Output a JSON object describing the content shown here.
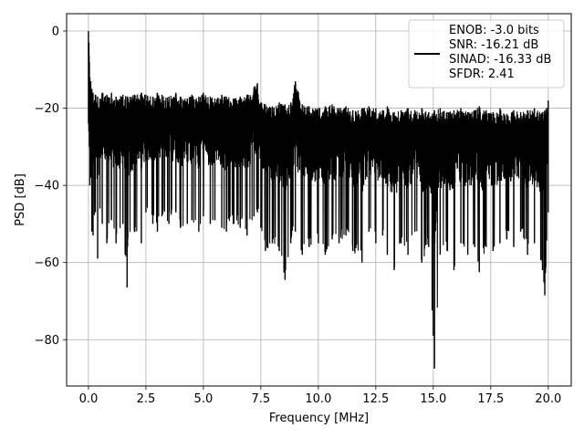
{
  "chart_data": {
    "type": "line",
    "title": "",
    "xlabel": "Frequency [MHz]",
    "ylabel": "PSD [dB]",
    "xlim": [
      -0.95,
      21.0
    ],
    "ylim": [
      -92.0,
      4.5
    ],
    "grid": true,
    "line_color": "#000000",
    "grid_color": "#b0b0b0",
    "xticks": [
      0.0,
      2.5,
      5.0,
      7.5,
      10.0,
      12.5,
      15.0,
      17.5,
      20.0
    ],
    "xtick_labels": [
      "0.0",
      "2.5",
      "5.0",
      "7.5",
      "10.0",
      "12.5",
      "15.0",
      "17.5",
      "20.0"
    ],
    "yticks": [
      0,
      -20,
      -40,
      -60,
      -80
    ],
    "ytick_labels": [
      "0",
      "−20",
      "−40",
      "−60",
      "−80"
    ],
    "legend": {
      "placement": "top-right",
      "lines": [
        "ENOB: -3.0 bits",
        "SNR: -16.21 dB",
        "SINAD: -16.33 dB",
        "SFDR: 2.41"
      ]
    },
    "series": [
      {
        "x": [
          0.0,
          0.02,
          0.04,
          0.06,
          0.1,
          0.15,
          0.2,
          0.3,
          0.4,
          0.5,
          0.6,
          0.8,
          1.0,
          1.2,
          1.5,
          1.68,
          1.7,
          2.0,
          2.3,
          2.5,
          2.8,
          3.0,
          3.2,
          3.5,
          3.8,
          4.0,
          4.3,
          4.5,
          4.8,
          5.0,
          5.3,
          5.5,
          5.8,
          6.0,
          6.3,
          6.6,
          6.9,
          7.2,
          7.35,
          7.5,
          7.7,
          8.0,
          8.3,
          8.55,
          8.8,
          9.0,
          9.3,
          9.6,
          10.0,
          10.3,
          10.6,
          10.9,
          11.2,
          11.5,
          11.9,
          12.2,
          12.5,
          12.8,
          13.0,
          13.3,
          13.6,
          13.9,
          14.2,
          14.5,
          14.8,
          15.05,
          15.3,
          15.6,
          15.9,
          16.2,
          16.5,
          16.8,
          17.0,
          17.3,
          17.6,
          17.9,
          18.2,
          18.5,
          18.8,
          19.1,
          19.4,
          19.75,
          19.85,
          20.0
        ],
        "y_upper": [
          0.0,
          -3.0,
          -8.0,
          -12.0,
          -13.0,
          -15.0,
          -16.0,
          -16.5,
          -17.0,
          -17.5,
          -16.0,
          -16.5,
          -16.0,
          -17.0,
          -16.5,
          -17.0,
          -17.0,
          -16.5,
          -16.0,
          -16.5,
          -17.0,
          -16.0,
          -16.5,
          -17.0,
          -16.0,
          -17.0,
          -17.5,
          -16.5,
          -17.0,
          -16.0,
          -17.0,
          -17.5,
          -16.5,
          -17.0,
          -17.5,
          -17.0,
          -16.5,
          -14.5,
          -13.5,
          -18.5,
          -19.0,
          -19.5,
          -18.5,
          -19.0,
          -18.5,
          -13.0,
          -19.0,
          -19.5,
          -20.0,
          -19.5,
          -19.0,
          -20.0,
          -19.5,
          -20.5,
          -20.0,
          -19.5,
          -20.0,
          -20.5,
          -19.5,
          -21.0,
          -20.5,
          -20.0,
          -20.5,
          -20.0,
          -21.0,
          -20.5,
          -20.0,
          -21.0,
          -20.5,
          -20.0,
          -21.0,
          -20.5,
          -19.5,
          -20.5,
          -21.0,
          -20.0,
          -21.5,
          -20.5,
          -21.0,
          -20.5,
          -20.0,
          -21.0,
          -20.5,
          -18.0
        ],
        "y_lower": [
          -24.0,
          -26.0,
          -30.0,
          -40.0,
          -38.0,
          -52.0,
          -53.0,
          -47.0,
          -59.0,
          -46.0,
          -50.0,
          -55.0,
          -49.0,
          -55.0,
          -50.0,
          -66.5,
          -56.0,
          -52.0,
          -55.0,
          -47.0,
          -50.0,
          -52.0,
          -48.0,
          -50.0,
          -47.0,
          -51.0,
          -50.0,
          -49.0,
          -52.0,
          -48.0,
          -50.0,
          -49.0,
          -51.0,
          -52.0,
          -50.0,
          -51.0,
          -53.0,
          -48.0,
          -47.0,
          -51.0,
          -57.0,
          -55.0,
          -57.0,
          -64.5,
          -55.0,
          -52.0,
          -58.0,
          -56.0,
          -55.0,
          -58.0,
          -54.0,
          -55.0,
          -53.0,
          -57.0,
          -60.0,
          -52.0,
          -55.0,
          -53.0,
          -58.0,
          -62.0,
          -55.0,
          -58.0,
          -52.0,
          -60.0,
          -56.0,
          -87.5,
          -58.0,
          -57.0,
          -62.0,
          -55.0,
          -58.0,
          -56.0,
          -62.5,
          -56.0,
          -57.0,
          -55.0,
          -54.0,
          -56.0,
          -52.0,
          -58.0,
          -55.0,
          -62.0,
          -68.5,
          -47.0
        ]
      }
    ]
  }
}
